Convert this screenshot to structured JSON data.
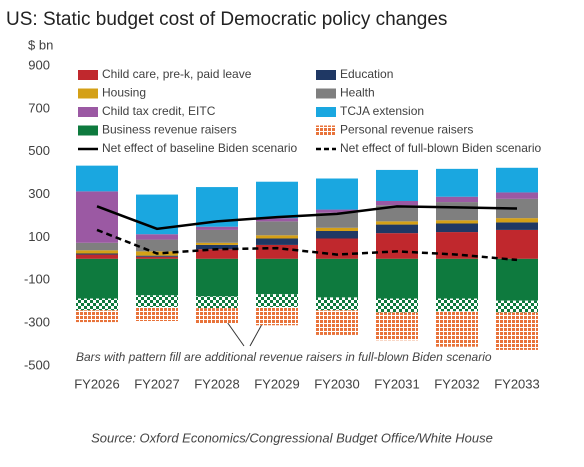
{
  "chart_data": {
    "type": "stacked-bar",
    "title": "US: Static budget cost of Democratic policy changes",
    "y_label": "$ bn",
    "annotation": "Bars with pattern fill are additional revenue raisers in full-blown Biden scenario",
    "source": "Source: Oxford Economics/Congressional Budget Office/White House",
    "categories": [
      "FY2026",
      "FY2027",
      "FY2028",
      "FY2029",
      "FY2030",
      "FY2031",
      "FY2032",
      "FY2033"
    ],
    "ylim": [
      -500,
      900
    ],
    "yticks": [
      -500,
      -300,
      -100,
      100,
      300,
      500,
      700,
      900
    ],
    "grid": false,
    "legend": "top",
    "series": [
      {
        "name": "Child care, pre-k, paid leave",
        "color": "#c0282d",
        "values": [
          20,
          10,
          45,
          65,
          95,
          120,
          125,
          135
        ]
      },
      {
        "name": "Education",
        "color": "#1f3864",
        "values": [
          5,
          5,
          20,
          30,
          35,
          40,
          40,
          35
        ]
      },
      {
        "name": "Housing",
        "color": "#d4a017",
        "values": [
          15,
          20,
          10,
          15,
          15,
          15,
          15,
          20
        ]
      },
      {
        "name": "Health",
        "color": "#7f7f7f",
        "values": [
          35,
          55,
          60,
          65,
          70,
          75,
          85,
          90
        ]
      },
      {
        "name": "Child tax credit, EITC",
        "color": "#9b59a3",
        "values": [
          240,
          25,
          15,
          15,
          15,
          20,
          25,
          30
        ]
      },
      {
        "name": "TCJA extension",
        "color": "#1aa7e0",
        "values": [
          120,
          185,
          185,
          170,
          145,
          145,
          130,
          115
        ]
      },
      {
        "name": "Business revenue raisers",
        "color": "#0e7a3e",
        "values": [
          -185,
          -170,
          -175,
          -165,
          -180,
          -185,
          -185,
          -195
        ],
        "additional": [
          -55,
          -55,
          -55,
          -60,
          -60,
          -65,
          -60,
          -55
        ]
      },
      {
        "name": "Personal revenue raisers",
        "color": "#e8733a",
        "pattern": true,
        "values": [
          -55,
          -65,
          -70,
          -85,
          -115,
          -130,
          -165,
          -175
        ]
      }
    ],
    "lines": [
      {
        "name": "Net effect of baseline Biden scenario",
        "color": "#000000",
        "style": "solid",
        "values": [
          245,
          140,
          175,
          195,
          210,
          245,
          240,
          235
        ]
      },
      {
        "name": "Net effect of full-blown Biden scenario",
        "color": "#000000",
        "style": "dashed",
        "values": [
          135,
          25,
          45,
          50,
          20,
          35,
          20,
          -5
        ]
      }
    ]
  }
}
